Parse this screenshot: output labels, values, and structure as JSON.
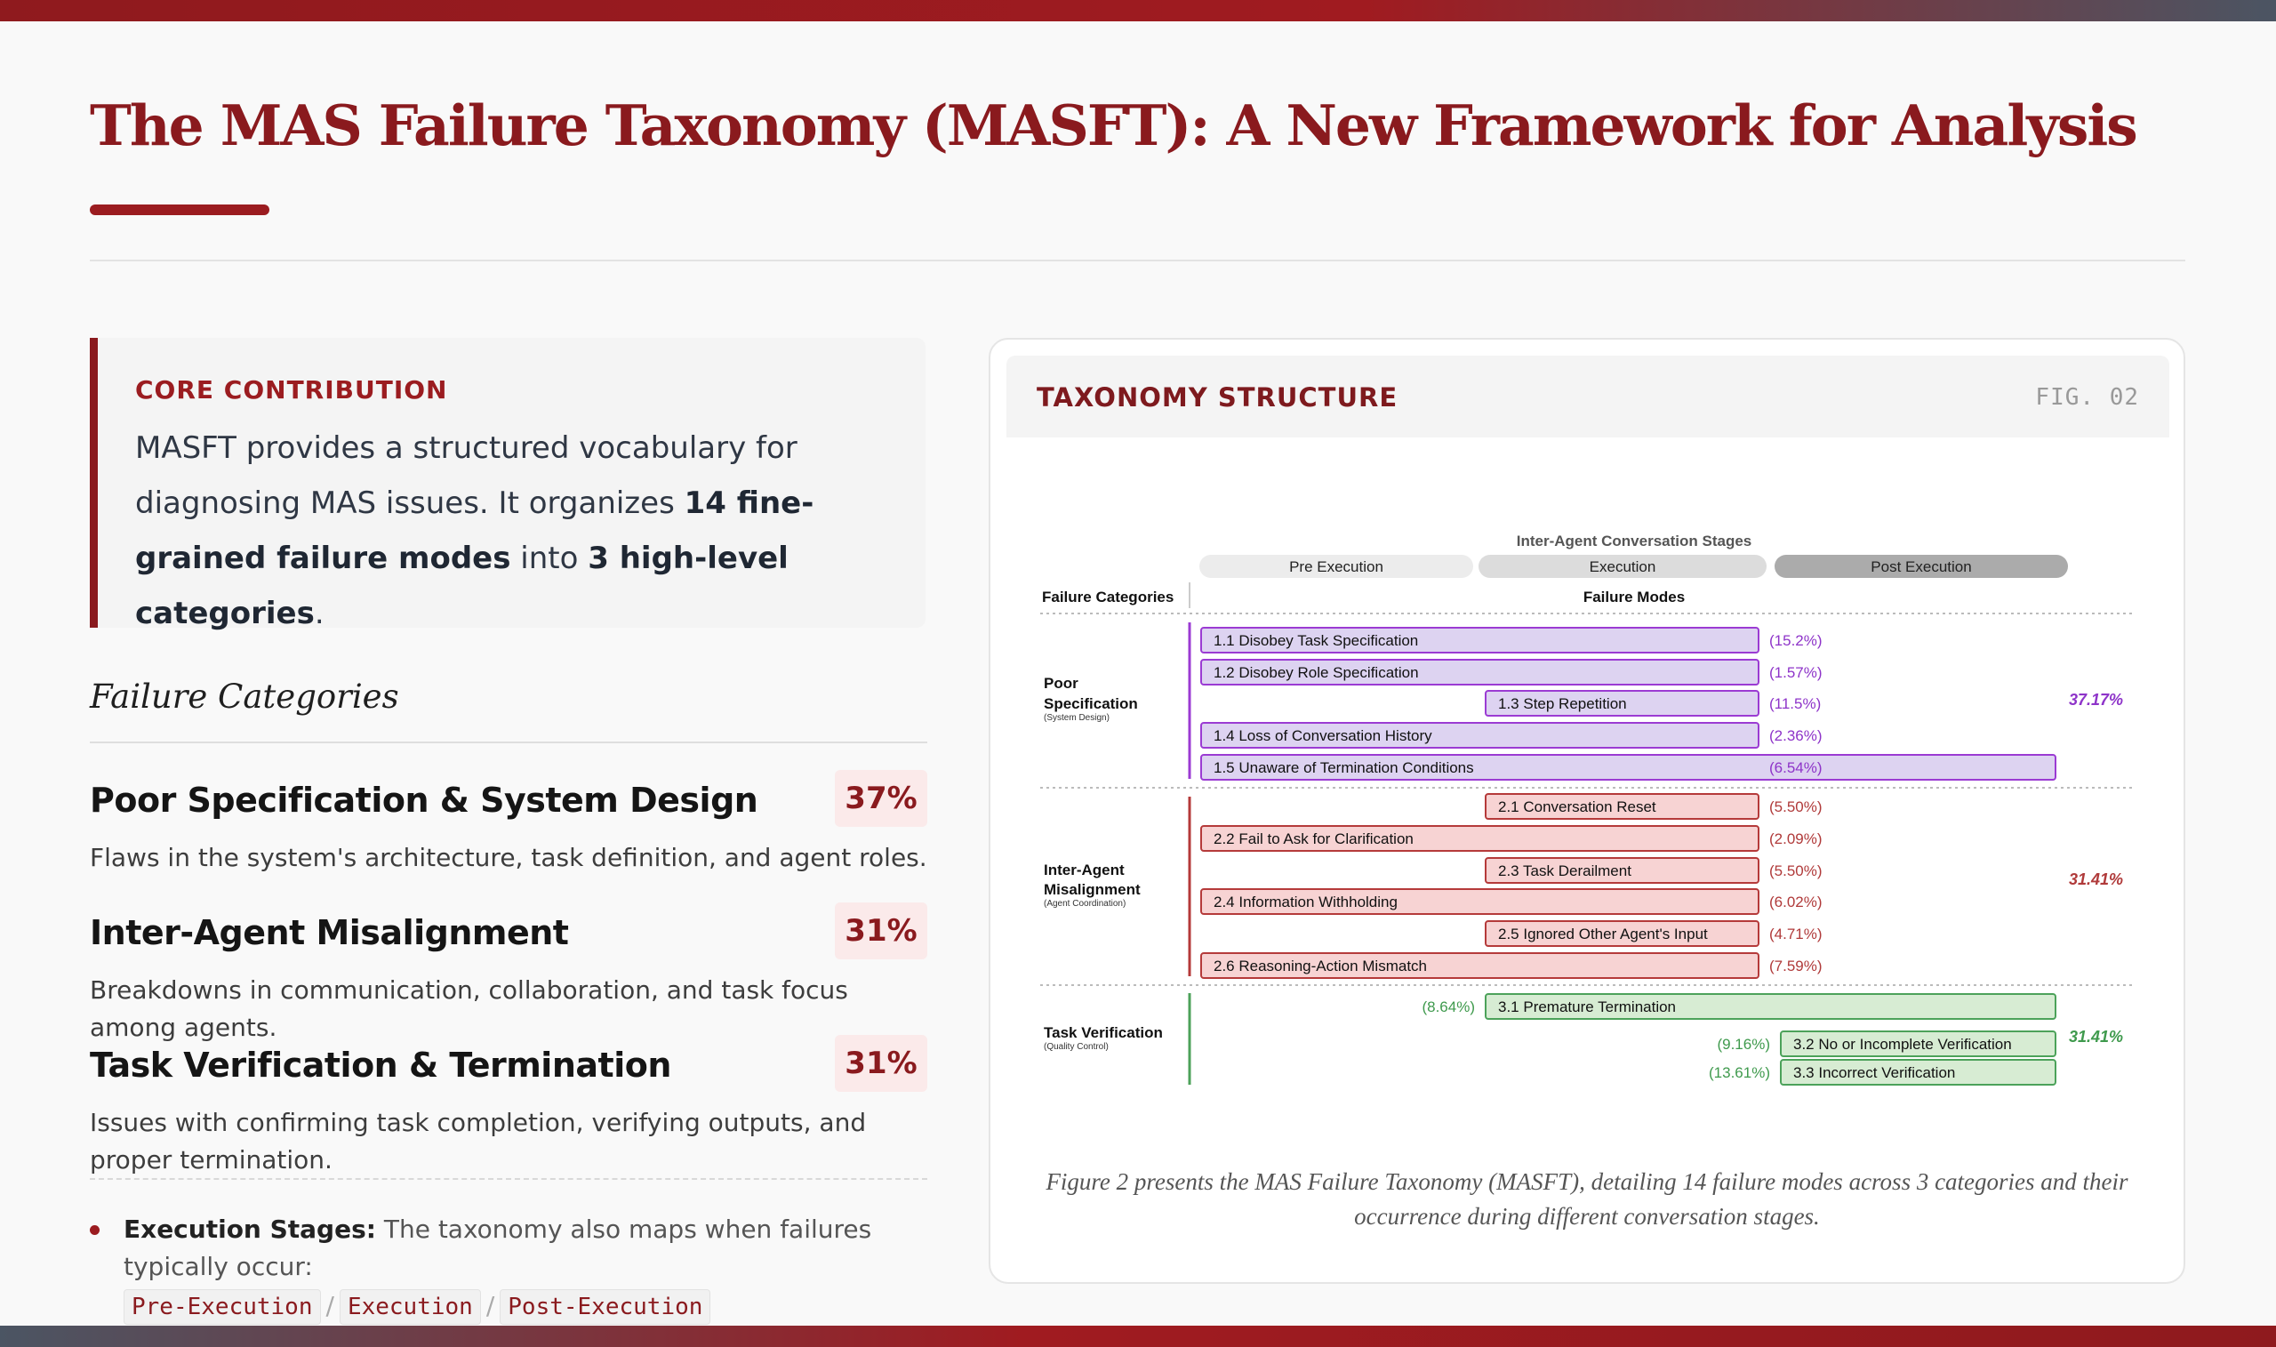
{
  "page": {
    "title": "The MAS Failure Taxonomy (MASFT): A New Framework for Analysis"
  },
  "core": {
    "label": "CORE CONTRIBUTION",
    "text_1": "MASFT provides a structured vocabulary for diagnosing MAS issues. It organizes ",
    "bold_1": "14 fine-grained failure modes",
    "text_2": " into ",
    "bold_2": "3 high-level categories",
    "text_3": "."
  },
  "categories": {
    "heading": "Failure Categories",
    "items": [
      {
        "title": "Poor Specification & System Design",
        "pct": "37%",
        "desc": "Flaws in the system's architecture, task definition, and agent roles."
      },
      {
        "title": "Inter-Agent Misalignment",
        "pct": "31%",
        "desc": "Breakdowns in communication, collaboration, and task focus among agents."
      },
      {
        "title": "Task Verification & Termination",
        "pct": "31%",
        "desc": "Issues with confirming task completion, verifying outputs, and proper termination."
      }
    ]
  },
  "stages_note": {
    "bold": "Execution Stages:",
    "text": " The taxonomy also maps when failures typically occur:",
    "codes": [
      "Pre-Execution",
      "Execution",
      "Post-Execution"
    ],
    "separator": "/"
  },
  "card": {
    "title": "TAXONOMY STRUCTURE",
    "fig": "FIG. 02",
    "caption": "Figure 2 presents the MAS Failure Taxonomy (MASFT), detailing 14 failure modes across 3 categories and their occurrence during different conversation stages."
  },
  "diagram": {
    "stage_header": "Inter-Agent Conversation Stages",
    "stages": [
      "Pre Execution",
      "Execution",
      "Post Execution"
    ],
    "col_left": "Failure Categories",
    "col_right": "Failure Modes",
    "colors": {
      "spec_fill": "#ddd3f1",
      "spec_stroke": "#9b3bd3",
      "spec_text": "#8e34c9",
      "mis_fill": "#f7d3d3",
      "mis_stroke": "#b53a3a",
      "mis_text": "#b03a3a",
      "ver_fill": "#d7ecd3",
      "ver_stroke": "#4ca25a",
      "ver_text": "#3f9a4d"
    },
    "groups": [
      {
        "name_1": "Poor",
        "name_2": "Specification",
        "sub": "(System Design)",
        "total": "37.17%",
        "theme": "spec"
      },
      {
        "name_1": "Inter-Agent",
        "name_2": "Misalignment",
        "sub": "(Agent Coordination)",
        "total": "31.41%",
        "theme": "mis"
      },
      {
        "name_1": "Task Verification",
        "name_2": "",
        "sub": "(Quality Control)",
        "total": "31.41%",
        "theme": "ver"
      }
    ],
    "modes": [
      {
        "label": "1.1 Disobey Task Specification",
        "pct": "(15.2%)",
        "theme": "spec",
        "start": "pre",
        "end": "exec",
        "pct_side": "right"
      },
      {
        "label": "1.2 Disobey Role Specification",
        "pct": "(1.57%)",
        "theme": "spec",
        "start": "pre",
        "end": "exec",
        "pct_side": "right"
      },
      {
        "label": "1.3 Step Repetition",
        "pct": "(11.5%)",
        "theme": "spec",
        "start": "exec",
        "end": "exec",
        "pct_side": "right"
      },
      {
        "label": "1.4 Loss of Conversation History",
        "pct": "(2.36%)",
        "theme": "spec",
        "start": "pre",
        "end": "exec",
        "pct_side": "right"
      },
      {
        "label": "1.5 Unaware of Termination Conditions",
        "pct": "(6.54%)",
        "theme": "spec",
        "start": "pre",
        "end": "post",
        "pct_side": "inside"
      },
      {
        "label": "2.1 Conversation Reset",
        "pct": "(5.50%)",
        "theme": "mis",
        "start": "exec",
        "end": "exec",
        "pct_side": "right"
      },
      {
        "label": "2.2 Fail to Ask for Clarification",
        "pct": "(2.09%)",
        "theme": "mis",
        "start": "pre",
        "end": "exec",
        "pct_side": "right"
      },
      {
        "label": "2.3 Task Derailment",
        "pct": "(5.50%)",
        "theme": "mis",
        "start": "exec",
        "end": "exec",
        "pct_side": "right"
      },
      {
        "label": "2.4 Information Withholding",
        "pct": "(6.02%)",
        "theme": "mis",
        "start": "pre",
        "end": "exec",
        "pct_side": "right"
      },
      {
        "label": "2.5 Ignored Other Agent's Input",
        "pct": "(4.71%)",
        "theme": "mis",
        "start": "exec",
        "end": "exec",
        "pct_side": "right"
      },
      {
        "label": "2.6 Reasoning-Action Mismatch",
        "pct": "(7.59%)",
        "theme": "mis",
        "start": "pre",
        "end": "exec",
        "pct_side": "right"
      },
      {
        "label": "3.1  Premature Termination",
        "pct": "(8.64%)",
        "theme": "ver",
        "start": "exec",
        "end": "post",
        "pct_side": "left"
      },
      {
        "label": "3.2 No or Incomplete Verification",
        "pct": "(9.16%)",
        "theme": "ver",
        "start": "post",
        "end": "post",
        "pct_side": "left"
      },
      {
        "label": "3.3 Incorrect Verification",
        "pct": "(13.61%)",
        "theme": "ver",
        "start": "post",
        "end": "post",
        "pct_side": "left"
      }
    ]
  }
}
